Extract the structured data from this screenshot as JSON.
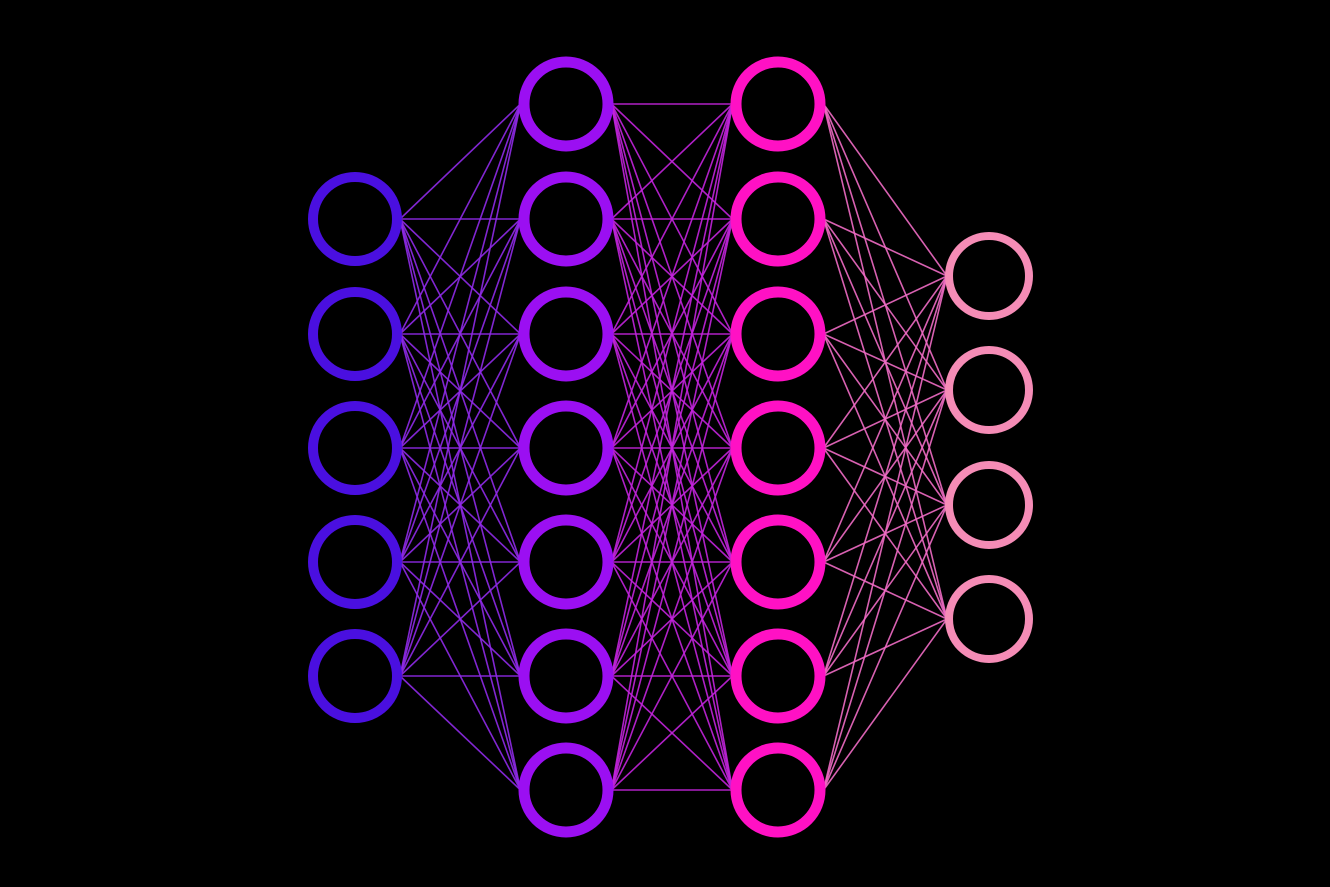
{
  "diagram": {
    "type": "neural-network",
    "background": "#000000",
    "layers": [
      {
        "id": "input",
        "nodes": 5,
        "color": "#4a0fe0"
      },
      {
        "id": "hidden-1",
        "nodes": 7,
        "color": "#9b0ff2"
      },
      {
        "id": "hidden-2",
        "nodes": 7,
        "color": "#ff11c4"
      },
      {
        "id": "output",
        "nodes": 4,
        "color": "#f58cb6"
      }
    ],
    "edge_colors": [
      "#8f2ae8",
      "#c223dc",
      "#f06cc4"
    ],
    "connectivity": "fully-connected"
  }
}
